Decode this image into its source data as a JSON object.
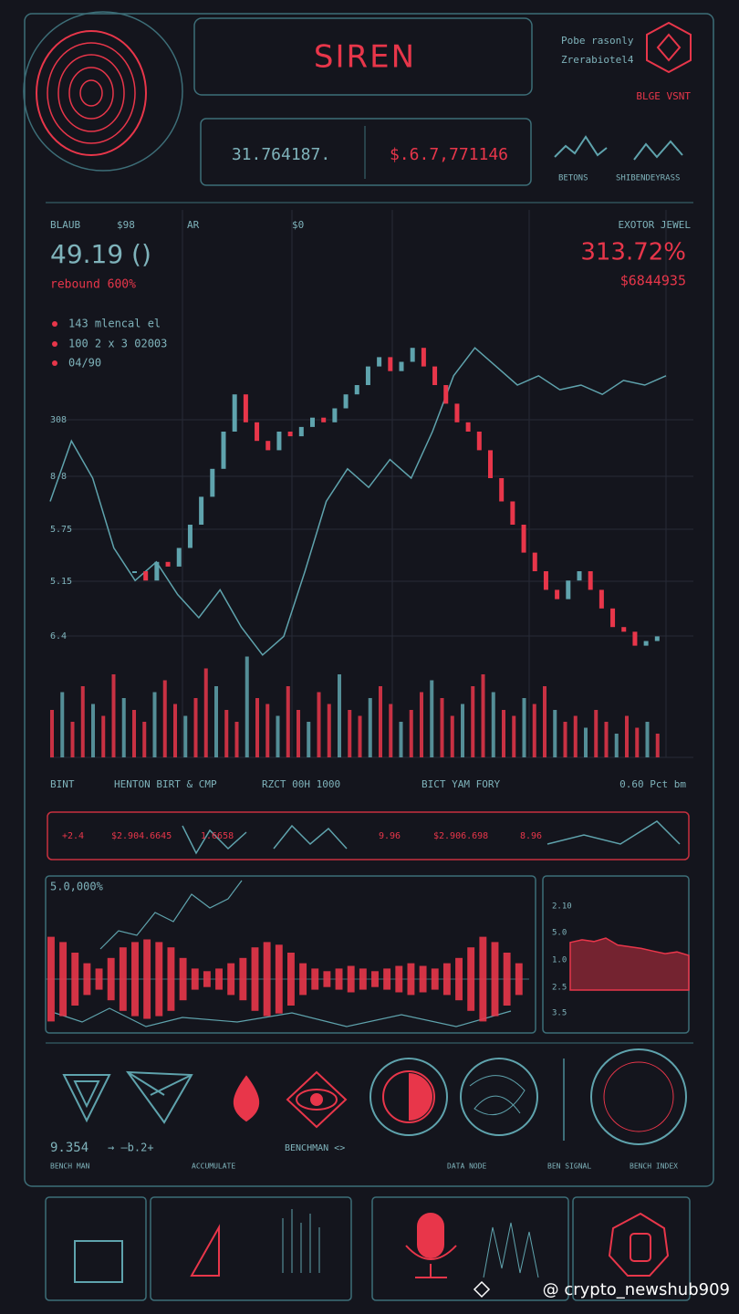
{
  "header": {
    "title": "SIREN",
    "stat_left": "31.764187.",
    "stat_right": "$.6.7,771146",
    "top_right_1": "Pobe rasonly",
    "top_right_2": "Zrerabiotel4",
    "top_right_badge": "BLGE VSNT",
    "spark_label_1": "BETONS",
    "spark_label_2": "SHIBENDEYRASS"
  },
  "main_panel": {
    "top_labels": [
      "BLAUB",
      "$98",
      "AR",
      "$0",
      "EXOTOR JEWEL"
    ],
    "main_value": "49.19 ()",
    "main_caption": "rebound 600%",
    "right_value": "313.72%",
    "right_caption": "$6844935",
    "legend": [
      "143 mlencal el",
      "100 2 x 3 02003",
      "04/90"
    ],
    "axis_labels": [
      "308",
      "8.8",
      "5.75",
      "5.15",
      "6.4"
    ],
    "bottom_labels": [
      "BINT",
      "HENTON BIRT & CMP",
      "RZCT 00H 1000",
      "BICT YAM FORY",
      "0.60 Pct bm"
    ],
    "ylim": [
      0,
      100
    ],
    "price": [
      40,
      38,
      42,
      41,
      45,
      50,
      56,
      62,
      70,
      78,
      72,
      68,
      66,
      70,
      69,
      71,
      73,
      72,
      75,
      78,
      80,
      84,
      86,
      83,
      85,
      88,
      84,
      80,
      76,
      72,
      70,
      66,
      60,
      55,
      50,
      44,
      40,
      36,
      34,
      38,
      40,
      36,
      32,
      28,
      27,
      24,
      25,
      26
    ],
    "trend": [
      55,
      68,
      60,
      45,
      38,
      42,
      35,
      30,
      36,
      28,
      22,
      26,
      40,
      55,
      62,
      58,
      64,
      60,
      70,
      82,
      88,
      84,
      80,
      82,
      79,
      80,
      78,
      81,
      80,
      82
    ],
    "volume_lim": [
      0,
      100
    ],
    "volume": [
      40,
      55,
      30,
      60,
      45,
      35,
      70,
      50,
      40,
      30,
      55,
      65,
      45,
      35,
      50,
      75,
      60,
      40,
      30,
      85,
      50,
      45,
      35,
      60,
      40,
      30,
      55,
      45,
      70,
      40,
      35,
      50,
      60,
      45,
      30,
      40,
      55,
      65,
      50,
      35,
      45,
      60,
      70,
      55,
      40,
      35,
      50,
      45,
      60,
      40,
      30,
      35,
      25,
      40,
      30,
      20,
      35,
      25,
      30,
      20
    ]
  },
  "ticker": [
    "+2.4",
    "$2.904.6645",
    "1.6658",
    "9.96",
    "$2.906.698",
    "8.96"
  ],
  "lower_panel": {
    "label": "5.0,000%",
    "wave_lim": [
      0,
      100
    ],
    "wave": [
      80,
      70,
      50,
      30,
      20,
      40,
      60,
      70,
      75,
      70,
      60,
      40,
      20,
      15,
      20,
      30,
      40,
      60,
      70,
      65,
      50,
      30,
      20,
      15,
      20,
      25,
      20,
      15,
      20,
      25,
      30,
      25,
      20,
      30,
      40,
      60,
      80,
      70,
      50,
      30
    ],
    "side_labels": [
      "2.10",
      "5.0",
      "1.0",
      "2.5",
      "3.5"
    ],
    "side_lim": [
      0,
      100
    ],
    "side_area": [
      55,
      58,
      56,
      60,
      52,
      50,
      48,
      45,
      42,
      44,
      40
    ]
  },
  "icons_row": {
    "value": "9.354",
    "arrow_text": "→ —b.2+",
    "center_text": "BENCHMAN <>",
    "captions": [
      "BENCH MAN",
      "ACCUMULATE",
      "DATA NODE",
      "BEN SIGNAL",
      "BENCH INDEX"
    ]
  },
  "footer": "@ crypto_newshub909"
}
